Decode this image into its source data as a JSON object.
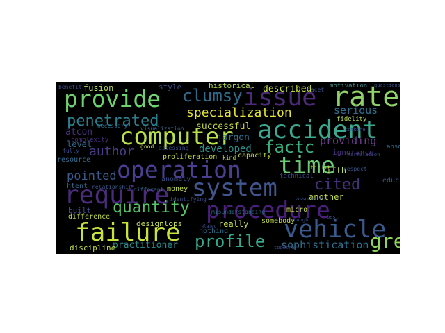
{
  "words": [
    {
      "text": "issue",
      "color": "#4b2a78"
    },
    {
      "text": "rate",
      "color": "#8fd36a"
    },
    {
      "text": "provide",
      "color": "#6ed16f"
    },
    {
      "text": "computer",
      "color": "#b8e04d"
    },
    {
      "text": "accident",
      "color": "#3aa98f"
    },
    {
      "text": "operation",
      "color": "#4b3d8f"
    },
    {
      "text": "time",
      "color": "#6acd75"
    },
    {
      "text": "require",
      "color": "#4a2b7c"
    },
    {
      "text": "system",
      "color": "#40568e"
    },
    {
      "text": "procedure",
      "color": "#4a1f7d"
    },
    {
      "text": "failure",
      "color": "#c8e23b"
    },
    {
      "text": "vehicle",
      "color": "#3a5a8e"
    },
    {
      "text": "penetrated",
      "color": "#2c7e8d"
    },
    {
      "text": "clumsy",
      "color": "#2e6b8d"
    },
    {
      "text": "specialization",
      "color": "#e2e43a"
    },
    {
      "text": "factc",
      "color": "#38b27f"
    },
    {
      "text": "quantity",
      "color": "#54c567"
    },
    {
      "text": "profile",
      "color": "#35a98c"
    },
    {
      "text": "cited",
      "color": "#46317e"
    },
    {
      "text": "greater",
      "color": "#8fd45a"
    },
    {
      "text": "author",
      "color": "#4a3a87"
    },
    {
      "text": "pointed",
      "color": "#3b5b8d"
    },
    {
      "text": "sophistication",
      "color": "#2d6f8e"
    },
    {
      "text": "described",
      "color": "#c6df3a"
    },
    {
      "text": "serious",
      "color": "#2f6f8e"
    },
    {
      "text": "providing",
      "color": "#6d3f8f"
    },
    {
      "text": "successful",
      "color": "#c4d54a"
    },
    {
      "text": "developed",
      "color": "#2b8e8c"
    },
    {
      "text": "jargon",
      "color": "#2d728e"
    },
    {
      "text": "atcon",
      "color": "#46307e"
    },
    {
      "text": "level",
      "color": "#2f6c8e"
    },
    {
      "text": "fusion",
      "color": "#b7dd4e"
    },
    {
      "text": "historical",
      "color": "#b2d84e"
    },
    {
      "text": "style",
      "color": "#3a4f8a"
    },
    {
      "text": "practitioner",
      "color": "#2a8a8b"
    },
    {
      "text": "discipline",
      "color": "#c0dd46"
    },
    {
      "text": "designlops",
      "color": "#c6e14a"
    },
    {
      "text": "difference",
      "color": "#bed949"
    },
    {
      "text": "really",
      "color": "#c4dd48"
    },
    {
      "text": "somebody",
      "color": "#c4d94a"
    },
    {
      "text": "another",
      "color": "#bfd950"
    },
    {
      "text": "fifth",
      "color": "#c3dd45"
    },
    {
      "text": "ignorance",
      "color": "#4b2f80"
    },
    {
      "text": "anomaly",
      "color": "#3a4f8a"
    },
    {
      "text": "proliferation",
      "color": "#bfd848"
    },
    {
      "text": "money",
      "color": "#c2d94b"
    },
    {
      "text": "nothing",
      "color": "#2f6c8e"
    },
    {
      "text": "built",
      "color": "#3b4f8c"
    },
    {
      "text": "htent",
      "color": "#2f6b8e"
    },
    {
      "text": "capacity",
      "color": "#bfd94a"
    },
    {
      "text": "micro",
      "color": "#c4d94a"
    },
    {
      "text": "technical",
      "color": "#3a4d8a"
    },
    {
      "text": "fidelity",
      "color": "#b9d94e"
    },
    {
      "text": "motivation",
      "color": "#3a8b8c"
    },
    {
      "text": "resource",
      "color": "#2f6c8e"
    },
    {
      "text": "necessary",
      "color": "#2d6f8e"
    },
    {
      "text": "visualization",
      "color": "#3a6a8e"
    },
    {
      "text": "assessing",
      "color": "#3a4d8a"
    },
    {
      "text": "educing",
      "color": "#3a5a8e"
    },
    {
      "text": "absorptive",
      "color": "#2f6b8e"
    },
    {
      "text": "misunderstanding",
      "color": "#2f6c8e"
    },
    {
      "text": "identifying",
      "color": "#3a4d8a"
    },
    {
      "text": "relationship",
      "color": "#3a5a8e"
    },
    {
      "text": "different",
      "color": "#2f6c8e"
    },
    {
      "text": "together",
      "color": "#3a4d8a"
    },
    {
      "text": "thrust",
      "color": "#c2d94b"
    },
    {
      "text": "respect",
      "color": "#3a5a8e"
    },
    {
      "text": "benefit",
      "color": "#3a4d8a"
    },
    {
      "text": "questions",
      "color": "#3a4d8a"
    },
    {
      "text": "fully",
      "color": "#3a4d8a"
    },
    {
      "text": "kind",
      "color": "#c2d94b"
    },
    {
      "text": "good",
      "color": "#c2d94b"
    },
    {
      "text": "combine",
      "color": "#3a4d8a"
    },
    {
      "text": "formulation",
      "color": "#3a4d8a"
    },
    {
      "text": "enough",
      "color": "#3a4d8a"
    },
    {
      "text": "best",
      "color": "#3a4d8a"
    },
    {
      "text": "facet",
      "color": "#3a4d8a"
    },
    {
      "text": "related",
      "color": "#3a4d8a"
    },
    {
      "text": "associated",
      "color": "#3a4d8a"
    },
    {
      "text": "complexity",
      "color": "#4b2f80"
    }
  ]
}
